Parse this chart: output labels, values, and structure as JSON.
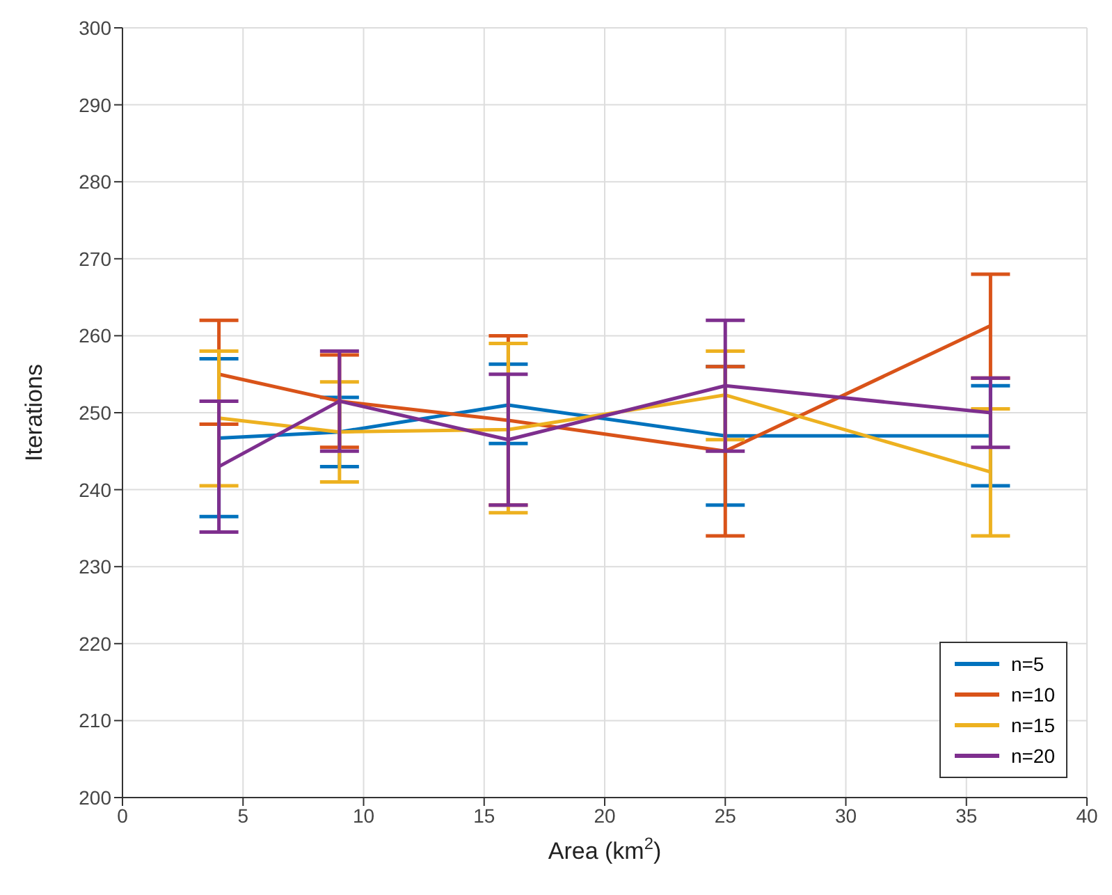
{
  "chart_data": {
    "type": "line",
    "xlabel": "Area (km$^{2}$)",
    "ylabel": "Iterations",
    "x": [
      4,
      9,
      16,
      25,
      36
    ],
    "xlim": [
      0,
      40
    ],
    "xticks": [
      0,
      5,
      10,
      15,
      20,
      25,
      30,
      35,
      40
    ],
    "ylim": [
      200,
      300
    ],
    "yticks": [
      200,
      210,
      220,
      230,
      240,
      250,
      260,
      270,
      280,
      290,
      300
    ],
    "grid": true,
    "legend": "bottom right",
    "marker": "none",
    "line_style": "solid",
    "series": [
      {
        "name": "n=5",
        "color": "#0072bd",
        "values": [
          246.7,
          247.5,
          251,
          247,
          247
        ],
        "errors": [
          [
            236.5,
            257
          ],
          [
            243,
            252
          ],
          [
            246,
            256.3
          ],
          [
            238,
            256
          ],
          [
            240.5,
            253.5
          ]
        ]
      },
      {
        "name": "n=10",
        "color": "#d95319",
        "values": [
          255,
          251.5,
          249,
          245,
          261.3
        ],
        "errors": [
          [
            248.5,
            262
          ],
          [
            245.5,
            257.5
          ],
          [
            238,
            260
          ],
          [
            234,
            256
          ],
          [
            254.5,
            268
          ]
        ]
      },
      {
        "name": "n=15",
        "color": "#edb120",
        "values": [
          249.3,
          247.5,
          247.8,
          252.3,
          242.3
        ],
        "errors": [
          [
            240.5,
            258
          ],
          [
            241,
            254
          ],
          [
            237,
            259
          ],
          [
            246.5,
            258
          ],
          [
            234,
            250.5
          ]
        ]
      },
      {
        "name": "n=20",
        "color": "#7e2f8e",
        "values": [
          243,
          251.5,
          246.5,
          253.5,
          250
        ],
        "errors": [
          [
            234.5,
            251.5
          ],
          [
            245,
            258
          ],
          [
            238,
            255
          ],
          [
            245,
            262
          ],
          [
            245.5,
            254.5
          ]
        ]
      }
    ]
  }
}
